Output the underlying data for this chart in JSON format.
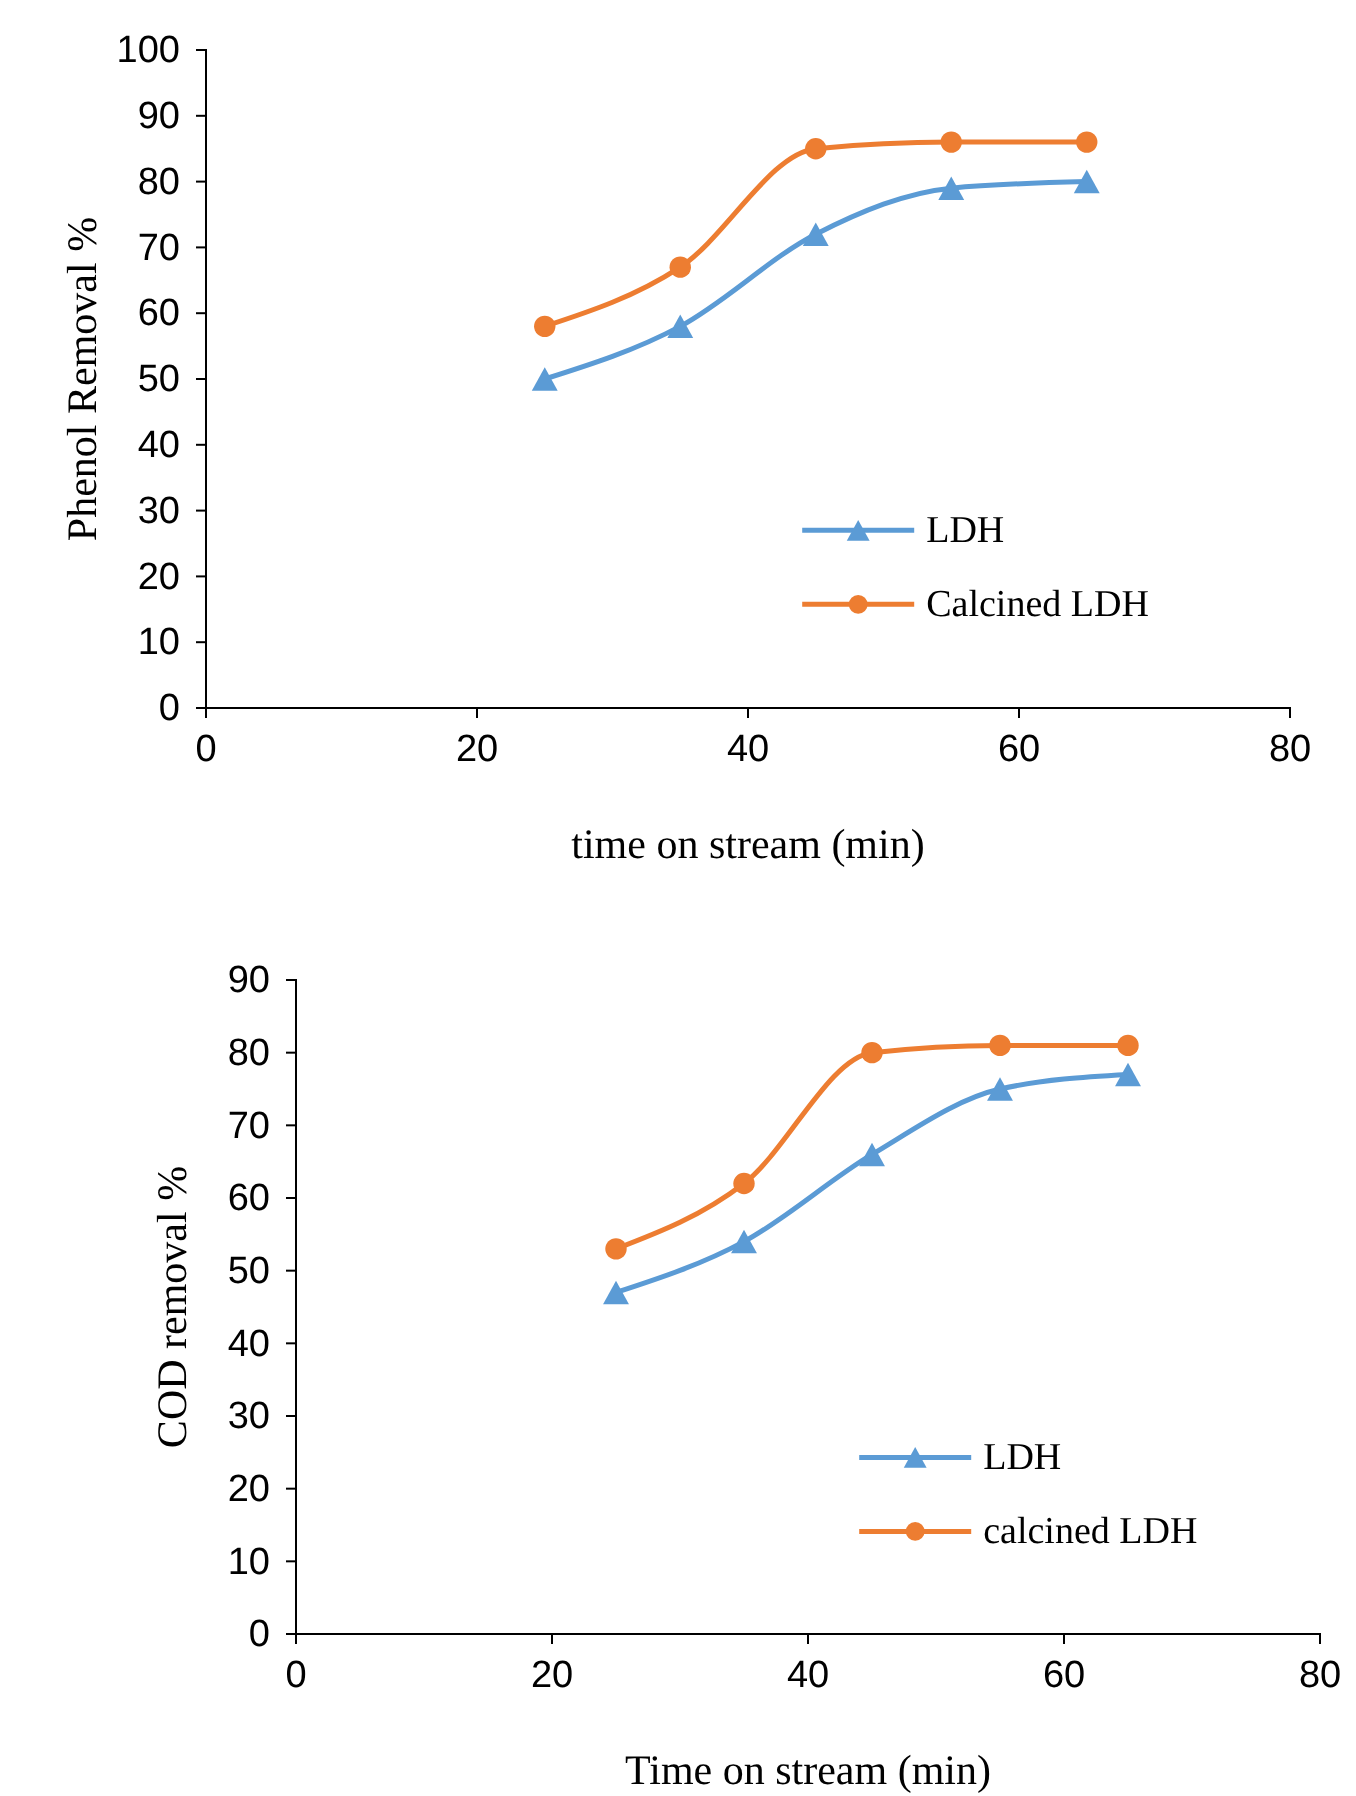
{
  "chart_data": [
    {
      "type": "line",
      "xlabel": "time on stream (min)",
      "ylabel": "Phenol Removal %",
      "x": [
        25,
        35,
        45,
        55,
        65
      ],
      "xlim": [
        0,
        80
      ],
      "xticks": [
        0,
        20,
        40,
        60,
        80
      ],
      "ylim": [
        0,
        100
      ],
      "yticks": [
        0,
        10,
        20,
        30,
        40,
        50,
        60,
        70,
        80,
        90,
        100
      ],
      "grid": false,
      "legend": "right",
      "series": [
        {
          "name": "LDH",
          "color": "#5b9bd5",
          "marker": "triangle",
          "values": [
            50,
            58,
            72,
            79,
            80
          ]
        },
        {
          "name": "Calcined LDH",
          "color": "#ed7d31",
          "marker": "circle",
          "values": [
            58,
            67,
            85,
            86,
            86
          ]
        }
      ]
    },
    {
      "type": "line",
      "xlabel": "Time on stream (min)",
      "ylabel": "COD removal %",
      "x": [
        25,
        35,
        45,
        55,
        65
      ],
      "xlim": [
        0,
        80
      ],
      "xticks": [
        0,
        20,
        40,
        60,
        80
      ],
      "ylim": [
        0,
        90
      ],
      "yticks": [
        0,
        10,
        20,
        30,
        40,
        50,
        60,
        70,
        80,
        90
      ],
      "grid": false,
      "legend": "right",
      "series": [
        {
          "name": "LDH",
          "color": "#5b9bd5",
          "marker": "triangle",
          "values": [
            47,
            54,
            66,
            75,
            77
          ]
        },
        {
          "name": "calcined LDH",
          "color": "#ed7d31",
          "marker": "circle",
          "values": [
            53,
            62,
            80,
            81,
            81
          ]
        }
      ]
    }
  ]
}
